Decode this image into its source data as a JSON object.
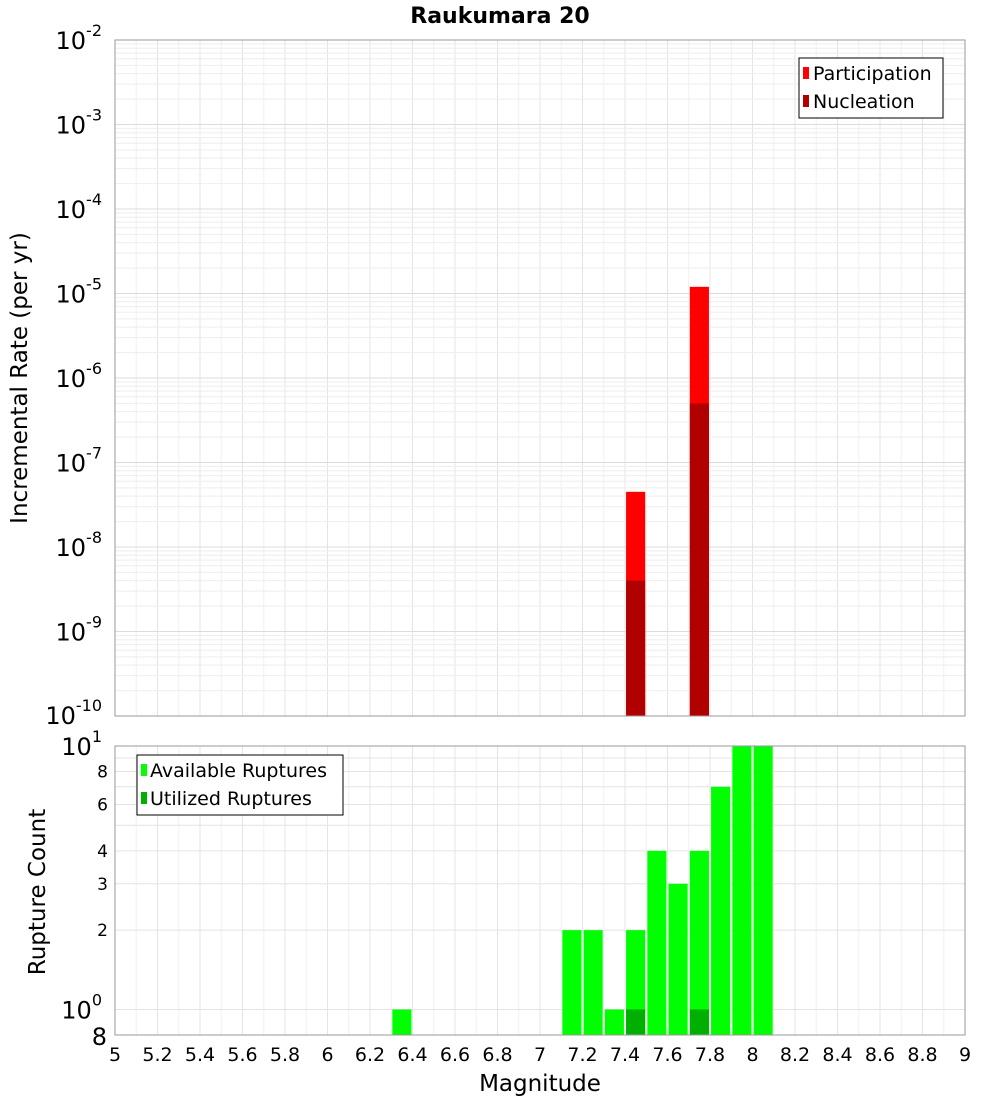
{
  "chart_data": [
    {
      "type": "bar",
      "title": "Raukumara 20",
      "ylabel": "Incremental Rate (per yr)",
      "yscale": "log",
      "ylim": [
        1e-10,
        0.01
      ],
      "xlim": [
        5,
        9
      ],
      "grid": true,
      "legend_position": "top-right",
      "bar_width": 0.09,
      "y_ticks": [
        {
          "base": "10",
          "exp": "-2"
        },
        {
          "base": "10",
          "exp": "-3"
        },
        {
          "base": "10",
          "exp": "-4"
        },
        {
          "base": "10",
          "exp": "-5"
        },
        {
          "base": "10",
          "exp": "-6"
        },
        {
          "base": "10",
          "exp": "-7"
        },
        {
          "base": "10",
          "exp": "-8"
        },
        {
          "base": "10",
          "exp": "-9"
        },
        {
          "base": "10",
          "exp": "-10"
        }
      ],
      "series": [
        {
          "name": "Participation",
          "color": "#ff0000",
          "x": [
            7.45,
            7.75
          ],
          "values": [
            4.5e-08,
            1.2e-05
          ]
        },
        {
          "name": "Nucleation",
          "color": "#b00000",
          "x": [
            7.45,
            7.75
          ],
          "values": [
            4e-09,
            5e-07
          ]
        }
      ]
    },
    {
      "type": "bar",
      "xlabel": "Magnitude",
      "ylabel": "Rupture Count",
      "yscale": "log",
      "ylim": [
        0.8,
        10
      ],
      "xlim": [
        5,
        9
      ],
      "grid": true,
      "legend_position": "top-left",
      "bar_width": 0.09,
      "x_ticks": [
        "5",
        "5.2",
        "5.4",
        "5.6",
        "5.8",
        "6",
        "6.2",
        "6.4",
        "6.6",
        "6.8",
        "7",
        "7.2",
        "7.4",
        "7.6",
        "7.8",
        "8",
        "8.2",
        "8.4",
        "8.6",
        "8.8",
        "9"
      ],
      "y_ticks_major": [
        {
          "value": 10,
          "base": "10",
          "exp": "1"
        },
        {
          "value": 1,
          "base": "10",
          "exp": "0"
        },
        {
          "value": 0.8,
          "base": "8",
          "exp": ""
        }
      ],
      "y_ticks_minor": [
        "8",
        "6",
        "4",
        "3",
        "2"
      ],
      "series": [
        {
          "name": "Available Ruptures",
          "color": "#00ff00",
          "x": [
            6.35,
            7.15,
            7.25,
            7.35,
            7.45,
            7.55,
            7.65,
            7.75,
            7.85,
            7.95,
            8.05
          ],
          "values": [
            1,
            2,
            2,
            1,
            2,
            4,
            3,
            4,
            7,
            10,
            10
          ]
        },
        {
          "name": "Utilized Ruptures",
          "color": "#00b000",
          "x": [
            7.45,
            7.75
          ],
          "values": [
            1,
            1
          ]
        }
      ]
    }
  ]
}
